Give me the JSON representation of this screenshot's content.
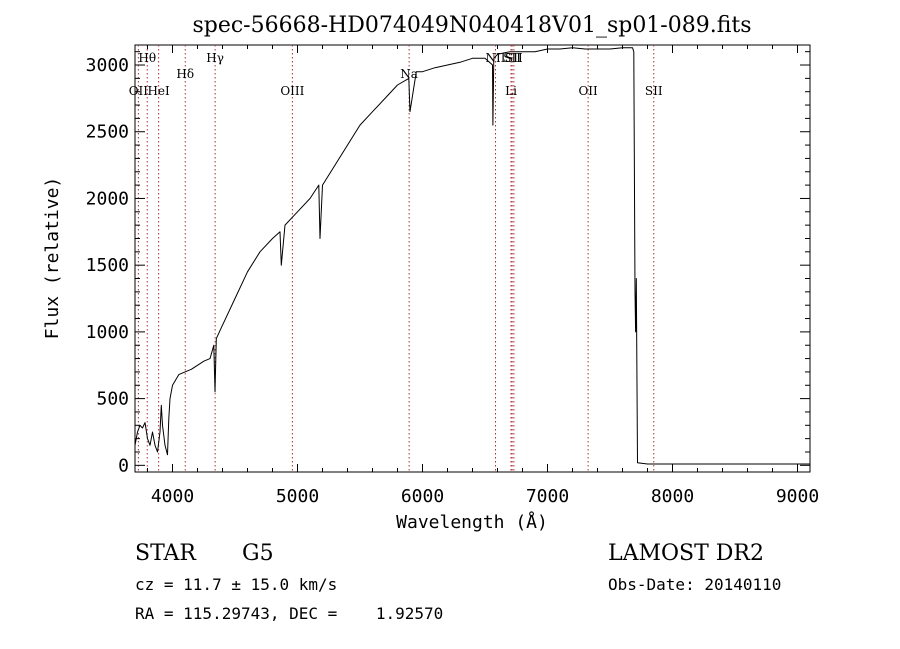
{
  "chart_data": {
    "type": "line",
    "title": "spec-56668-HD074049N040418V01_sp01-089.fits",
    "xlabel": "Wavelength (Å)",
    "ylabel": "Flux (relative)",
    "xlim": [
      3700,
      9100
    ],
    "ylim": [
      -50,
      3150
    ],
    "xticks": [
      4000,
      5000,
      6000,
      7000,
      8000,
      9000
    ],
    "yticks": [
      0,
      500,
      1000,
      1500,
      2000,
      2500,
      3000
    ],
    "grid": false,
    "series": [
      {
        "x": [
          3700,
          3720,
          3740,
          3760,
          3780,
          3800,
          3820,
          3840,
          3860,
          3880,
          3900,
          3910,
          3920,
          3940,
          3960,
          3970,
          3980,
          4000,
          4050,
          4100,
          4150,
          4200,
          4250,
          4300,
          4330,
          4340,
          4350,
          4400,
          4500,
          4600,
          4700,
          4800,
          4860,
          4870,
          4900,
          5000,
          5100,
          5170,
          5180,
          5200,
          5300,
          5400,
          5500,
          5600,
          5700,
          5800,
          5890,
          5900,
          5950,
          6000,
          6100,
          6200,
          6300,
          6400,
          6500,
          6560,
          6563,
          6570,
          6600,
          6700,
          6800,
          6900,
          7000,
          7100,
          7200,
          7300,
          7400,
          7500,
          7600,
          7650,
          7680,
          7690,
          7700,
          7705,
          7710,
          7720,
          7800,
          8000,
          8500,
          9000,
          9100
        ],
        "y": [
          150,
          250,
          300,
          280,
          320,
          200,
          150,
          250,
          150,
          100,
          250,
          450,
          300,
          150,
          80,
          350,
          500,
          600,
          680,
          700,
          720,
          750,
          780,
          800,
          900,
          550,
          950,
          1050,
          1250,
          1450,
          1600,
          1700,
          1750,
          1500,
          1800,
          1900,
          2000,
          2100,
          1700,
          2100,
          2250,
          2400,
          2550,
          2650,
          2750,
          2850,
          2900,
          2650,
          2950,
          2950,
          2980,
          3000,
          3020,
          3050,
          3050,
          3000,
          2550,
          3050,
          3080,
          3100,
          3100,
          3100,
          3120,
          3120,
          3130,
          3120,
          3120,
          3120,
          3130,
          3130,
          3130,
          3100,
          1300,
          1000,
          1400,
          20,
          10,
          10,
          10,
          10,
          10
        ]
      }
    ],
    "annotations": [
      {
        "label": "Hθ",
        "x": 3798,
        "row": 1
      },
      {
        "label": "OII",
        "x": 3727,
        "row": 3
      },
      {
        "label": "HeI",
        "x": 3889,
        "row": 3
      },
      {
        "label": "Hδ",
        "x": 4102,
        "row": 2
      },
      {
        "label": "Hγ",
        "x": 4341,
        "row": 1
      },
      {
        "label": "OIII",
        "x": 4959,
        "row": 3
      },
      {
        "label": "Na",
        "x": 5893,
        "row": 2
      },
      {
        "label": "NII",
        "x": 6584,
        "row": 1
      },
      {
        "label": "SII",
        "x": 6717,
        "row": 1
      },
      {
        "label": "SII",
        "x": 6731,
        "row": 1
      },
      {
        "label": "Li",
        "x": 6708,
        "row": 3
      },
      {
        "label": "OII",
        "x": 7325,
        "row": 3
      },
      {
        "label": "SII",
        "x": 7850,
        "row": 3
      }
    ]
  },
  "info": {
    "class": "STAR",
    "subclass": "G5",
    "survey": "LAMOST DR2",
    "cz": "cz = 11.7 ± 15.0 km/s",
    "obs_date": "Obs-Date: 20140110",
    "coords": "RA = 115.29743, DEC =    1.92570"
  }
}
